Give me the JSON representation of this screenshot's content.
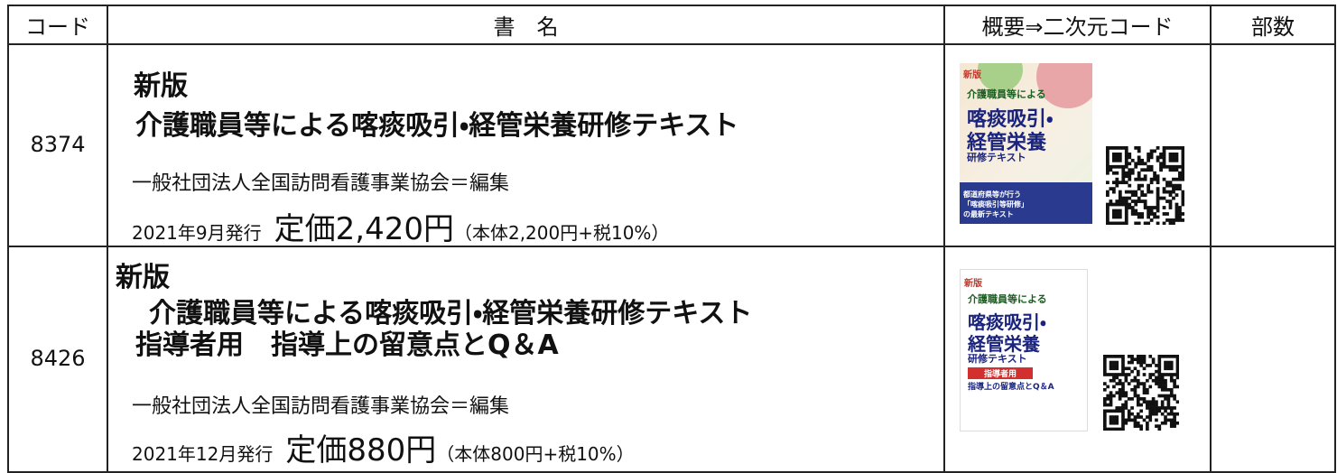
{
  "header": {
    "columns": [
      "コード",
      "書　名",
      "概要⇒二次元コード",
      "部数"
    ]
  },
  "rows": [
    {
      "code": "8374",
      "title_lines": [
        "新版",
        "介護職員等による喀痰吸引・経管栄養研修テキスト"
      ],
      "editor": "一般社団法人全国訪問看護事業協会＝編集",
      "published": "2021年9月発行",
      "price": "定価2,420円",
      "price_detail": "（本体2,200円+税10%）",
      "cover": {
        "lines": [
          "新版",
          "介護職員等による",
          "喀痰吸引・",
          "経管栄養",
          "研修テキスト"
        ],
        "band": "都道府県等が行う「喀痰吸引等研修」の最新テキスト"
      }
    },
    {
      "code": "8426",
      "title_lines": [
        "新版",
        "介護職員等による喀痰吸引・経管栄養研修テキスト",
        "指導者用　指導上の留意点とQ＆A"
      ],
      "editor": "一般社団法人全国訪問看護事業協会＝編集",
      "published": "2021年12月発行",
      "price": "定価880円",
      "price_detail": "（本体800円+税10%）",
      "cover": {
        "lines": [
          "新版",
          "介護職員等による",
          "喀痰吸引・",
          "経管栄養",
          "研修テキスト"
        ],
        "band": "指導者用",
        "sub": "指導上の留意点とQ＆A"
      }
    }
  ]
}
